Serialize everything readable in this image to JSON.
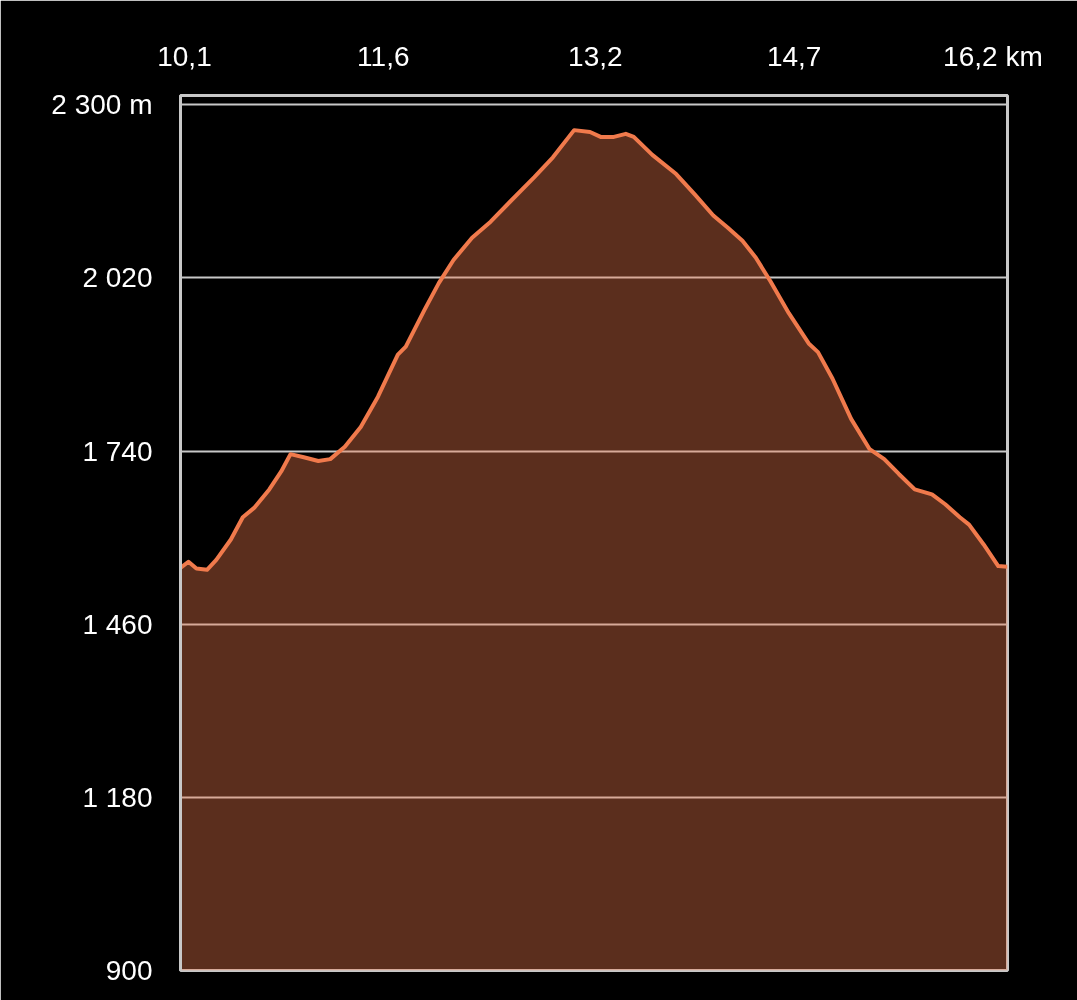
{
  "chart_data": {
    "type": "area",
    "x": [
      10.07,
      10.13,
      10.19,
      10.27,
      10.34,
      10.45,
      10.54,
      10.63,
      10.74,
      10.83,
      10.9,
      11.0,
      11.11,
      11.2,
      11.31,
      11.43,
      11.56,
      11.71,
      11.77,
      11.91,
      12.02,
      12.13,
      12.27,
      12.41,
      12.56,
      12.74,
      12.88,
      13.04,
      13.16,
      13.24,
      13.34,
      13.43,
      13.49,
      13.63,
      13.81,
      13.95,
      14.09,
      14.2,
      14.31,
      14.41,
      14.52,
      14.66,
      14.81,
      14.88,
      14.99,
      15.13,
      15.27,
      15.38,
      15.49,
      15.61,
      15.74,
      15.84,
      15.95,
      16.02,
      16.13,
      16.24,
      16.31
    ],
    "series": [
      {
        "color": "#f07a4c",
        "values": [
          1551,
          1561,
          1550,
          1548,
          1564,
          1597,
          1633,
          1649,
          1678,
          1707,
          1735,
          1730,
          1724,
          1727,
          1747,
          1779,
          1828,
          1896,
          1909,
          1968,
          2012,
          2049,
          2085,
          2111,
          2144,
          2183,
          2215,
          2259,
          2256,
          2248,
          2248,
          2253,
          2248,
          2219,
          2188,
          2155,
          2121,
          2101,
          2080,
          2053,
          2015,
          1963,
          1914,
          1900,
          1857,
          1792,
          1743,
          1727,
          1703,
          1678,
          1670,
          1654,
          1633,
          1621,
          1589,
          1554,
          1553
        ]
      }
    ],
    "xlim": [
      10.07,
      16.31
    ],
    "ylim": [
      900,
      2315
    ],
    "xticks": [
      {
        "value": 10.1,
        "label": "10,1"
      },
      {
        "value": 11.6,
        "label": "11,6"
      },
      {
        "value": 13.2,
        "label": "13,2"
      },
      {
        "value": 14.7,
        "label": "14,7"
      },
      {
        "value": 16.2,
        "label": "16,2 km"
      }
    ],
    "yticks": [
      {
        "value": 900,
        "label": "900"
      },
      {
        "value": 1180,
        "label": "1 180"
      },
      {
        "value": 1460,
        "label": "1 460"
      },
      {
        "value": 1740,
        "label": "1 740"
      },
      {
        "value": 2020,
        "label": "2 020"
      },
      {
        "value": 2300,
        "label": "2 300 m"
      }
    ],
    "grid": "y",
    "line_style": "solid"
  }
}
